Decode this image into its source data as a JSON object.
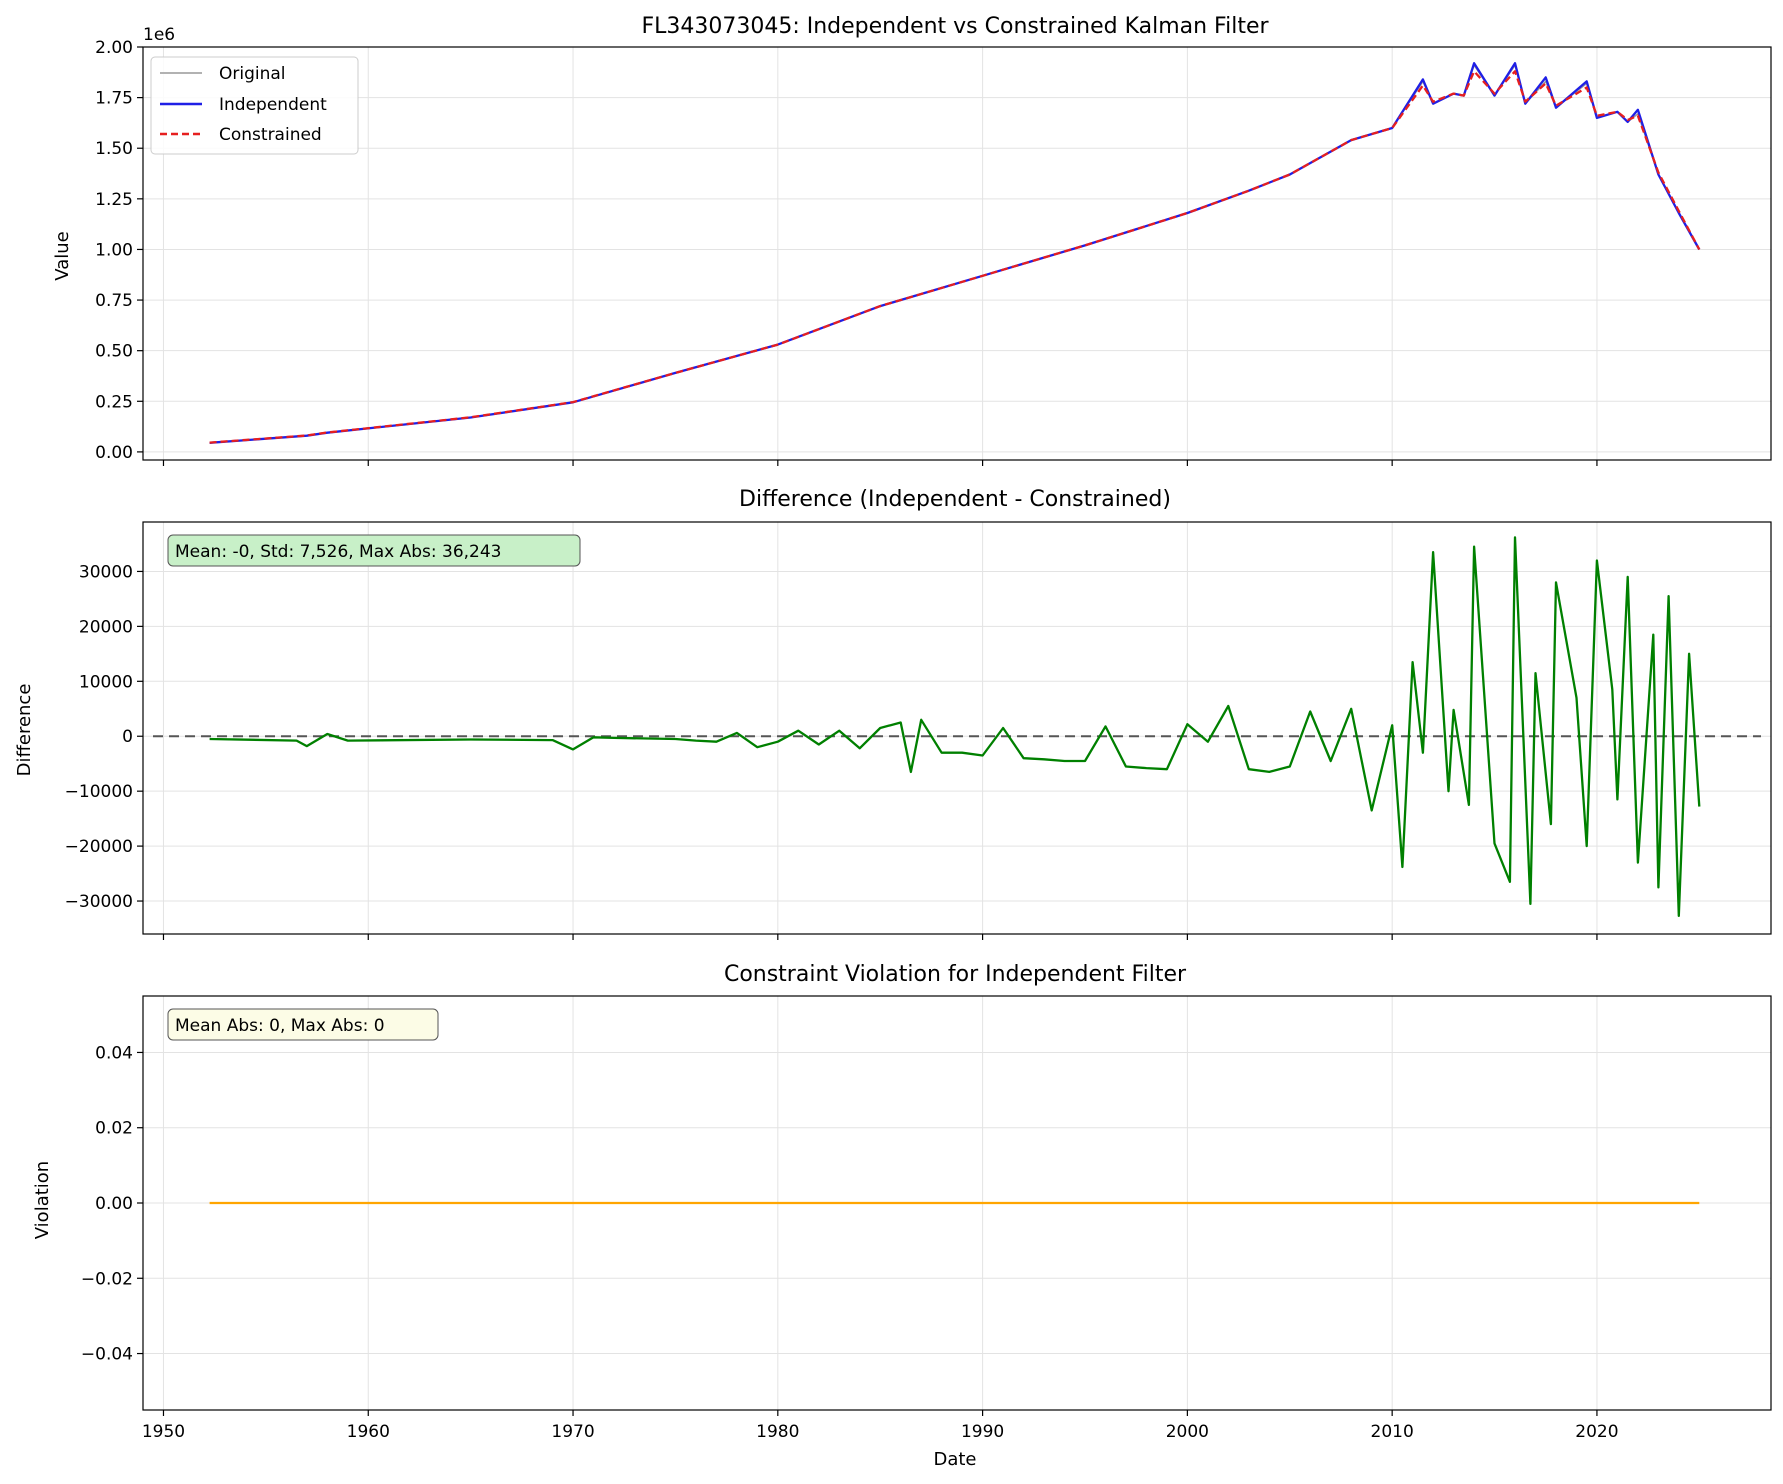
{
  "chart_data": [
    {
      "type": "line",
      "title": "FL343073045: Independent vs Constrained Kalman Filter",
      "xlabel": "",
      "ylabel": "Value",
      "offset_label": "1e6",
      "xlim": [
        1949,
        2028.5
      ],
      "ylim": [
        -0.04,
        2.0
      ],
      "y_ticks": [
        0.0,
        0.25,
        0.5,
        0.75,
        1.0,
        1.25,
        1.5,
        1.75,
        2.0
      ],
      "y_tick_labels": [
        "0.00",
        "0.25",
        "0.50",
        "0.75",
        "1.00",
        "1.25",
        "1.50",
        "1.75",
        "2.00"
      ],
      "grid": true,
      "legend_position": "upper-left",
      "legend": [
        "Original",
        "Independent",
        "Constrained"
      ],
      "series": [
        {
          "name": "Original",
          "color": "#999999",
          "style": "solid",
          "x": [
            1952.25,
            1957,
            1958,
            1965,
            1970,
            1975,
            1980,
            1985,
            1990,
            1995,
            2000,
            2003,
            2005,
            2008,
            2010,
            2011.5,
            2012,
            2013,
            2013.5,
            2014,
            2015,
            2016,
            2016.5,
            2017.5,
            2018,
            2019.5,
            2020,
            2021,
            2021.5,
            2022,
            2023,
            2024,
            2025
          ],
          "y": [
            0.045,
            0.08,
            0.095,
            0.17,
            0.245,
            0.39,
            0.53,
            0.72,
            0.87,
            1.02,
            1.18,
            1.29,
            1.37,
            1.54,
            1.6,
            1.83,
            1.72,
            1.77,
            1.76,
            1.91,
            1.76,
            1.91,
            1.72,
            1.83,
            1.7,
            1.82,
            1.65,
            1.68,
            1.63,
            1.67,
            1.37,
            1.18,
            1.0
          ]
        },
        {
          "name": "Independent",
          "color": "#1f1fe6",
          "style": "solid",
          "x": [
            1952.25,
            1957,
            1958,
            1965,
            1970,
            1975,
            1980,
            1985,
            1990,
            1995,
            2000,
            2003,
            2005,
            2008,
            2010,
            2011.5,
            2012,
            2013,
            2013.5,
            2014,
            2015,
            2016,
            2016.5,
            2017.5,
            2018,
            2019.5,
            2020,
            2021,
            2021.5,
            2022,
            2023,
            2024,
            2025
          ],
          "y": [
            0.045,
            0.08,
            0.095,
            0.17,
            0.245,
            0.39,
            0.53,
            0.72,
            0.87,
            1.02,
            1.18,
            1.29,
            1.37,
            1.54,
            1.6,
            1.84,
            1.72,
            1.77,
            1.76,
            1.92,
            1.76,
            1.92,
            1.72,
            1.85,
            1.7,
            1.83,
            1.65,
            1.68,
            1.63,
            1.69,
            1.37,
            1.18,
            1.0
          ]
        },
        {
          "name": "Constrained",
          "color": "#e61f1f",
          "style": "dashed",
          "x": [
            1952.25,
            1957,
            1958,
            1965,
            1970,
            1975,
            1980,
            1985,
            1990,
            1995,
            2000,
            2003,
            2005,
            2008,
            2010,
            2011.5,
            2012,
            2013,
            2013.5,
            2014,
            2015,
            2016,
            2016.5,
            2017.5,
            2018,
            2019.5,
            2020,
            2021,
            2021.5,
            2022,
            2023,
            2024,
            2025
          ],
          "y": [
            0.046,
            0.081,
            0.096,
            0.171,
            0.246,
            0.39,
            0.53,
            0.72,
            0.87,
            1.02,
            1.18,
            1.29,
            1.37,
            1.54,
            1.6,
            1.81,
            1.73,
            1.77,
            1.76,
            1.88,
            1.77,
            1.88,
            1.73,
            1.82,
            1.71,
            1.8,
            1.66,
            1.68,
            1.64,
            1.66,
            1.38,
            1.19,
            1.0
          ]
        }
      ]
    },
    {
      "type": "line",
      "title": "Difference (Independent - Constrained)",
      "xlabel": "",
      "ylabel": "Difference",
      "xlim": [
        1949,
        2028.5
      ],
      "ylim": [
        -36000,
        39000
      ],
      "y_ticks": [
        -30000,
        -20000,
        -10000,
        0,
        10000,
        20000,
        30000
      ],
      "y_tick_labels": [
        "−30000",
        "−20000",
        "−10000",
        "0",
        "10000",
        "20000",
        "30000"
      ],
      "grid": true,
      "reference_line": 0,
      "annotation": "Mean: -0, Std: 7,526, Max Abs: 36,243",
      "series": [
        {
          "name": "",
          "color": "#008000",
          "x": [
            1952.25,
            1956.5,
            1957,
            1958,
            1959,
            1965,
            1969,
            1970,
            1971,
            1972,
            1975,
            1976,
            1977,
            1978,
            1979,
            1980,
            1981,
            1982,
            1983,
            1984,
            1985,
            1986,
            1986.5,
            1987,
            1988,
            1989,
            1990,
            1991,
            1992,
            1993,
            1994,
            1995,
            1996,
            1997,
            1998,
            1999,
            2000,
            2001,
            2002,
            2003,
            2004,
            2005,
            2006,
            2007,
            2008,
            2009,
            2010,
            2010.5,
            2011,
            2011.5,
            2012,
            2012.75,
            2013,
            2013.75,
            2014,
            2015,
            2015.75,
            2016,
            2016.75,
            2017,
            2017.75,
            2018,
            2019,
            2019.5,
            2020,
            2020.75,
            2021,
            2021.5,
            2022,
            2022.75,
            2023,
            2023.5,
            2024,
            2024.5,
            2025
          ],
          "y": [
            -500,
            -800,
            -1800,
            400,
            -800,
            -600,
            -700,
            -2400,
            -200,
            -300,
            -500,
            -800,
            -1000,
            600,
            -2000,
            -1000,
            1000,
            -1500,
            1000,
            -2200,
            1500,
            2500,
            -6500,
            3000,
            -3000,
            -3000,
            -3500,
            1500,
            -4000,
            -4200,
            -4500,
            -4500,
            1800,
            -5500,
            -5800,
            -6000,
            2200,
            -1000,
            5500,
            -6000,
            -6500,
            -5500,
            4500,
            -4500,
            5000,
            -13500,
            2000,
            -23800,
            13500,
            -3000,
            33500,
            -10000,
            4800,
            -12500,
            34500,
            -19500,
            -26500,
            36200,
            -30500,
            11500,
            -16000,
            28000,
            7000,
            -20000,
            32000,
            8500,
            -11500,
            29000,
            -23000,
            18500,
            -27500,
            25500,
            -32700,
            15000,
            -12800
          ]
        }
      ]
    },
    {
      "type": "line",
      "title": "Constraint Violation for Independent Filter",
      "xlabel": "Date",
      "ylabel": "Violation",
      "xlim": [
        1949,
        2028.5
      ],
      "ylim": [
        -0.055,
        0.055
      ],
      "y_ticks": [
        -0.04,
        -0.02,
        0.0,
        0.02,
        0.04
      ],
      "y_tick_labels": [
        "−0.04",
        "−0.02",
        "0.00",
        "0.02",
        "0.04"
      ],
      "x_ticks": [
        1950,
        1960,
        1970,
        1980,
        1990,
        2000,
        2010,
        2020
      ],
      "x_tick_labels": [
        "1950",
        "1960",
        "1970",
        "1980",
        "1990",
        "2000",
        "2010",
        "2020"
      ],
      "grid": true,
      "annotation": "Mean Abs: 0, Max Abs: 0",
      "series": [
        {
          "name": "",
          "color": "#ffa500",
          "x": [
            1952.25,
            2025
          ],
          "y": [
            0,
            0
          ]
        }
      ]
    }
  ]
}
